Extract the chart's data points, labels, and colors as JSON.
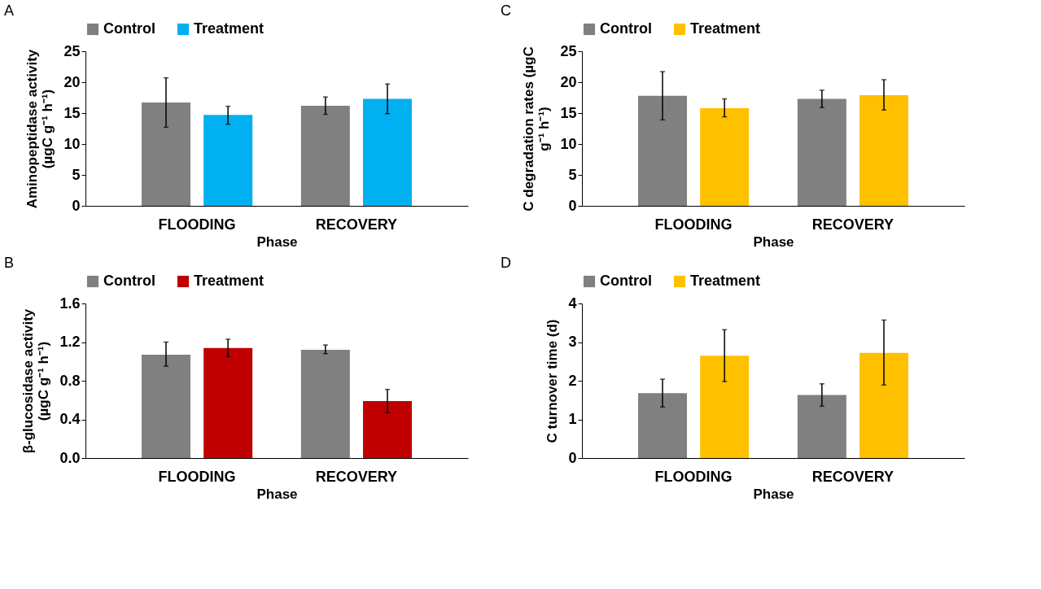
{
  "chart_data": [
    {
      "type": "bar",
      "title": "A",
      "xlabel": "Phase",
      "ylabel": "Aminopeptidase activity (µgC g⁻¹ h⁻¹)",
      "categories": [
        "FLOODING",
        "RECOVERY"
      ],
      "ylim": [
        0,
        25
      ],
      "yticks": [
        0,
        5,
        10,
        15,
        20,
        25
      ],
      "legend": "top",
      "grid": false,
      "series": [
        {
          "name": "Control",
          "color": "#808080",
          "values": [
            16.7,
            16.2
          ],
          "errors": [
            [
              12.7,
              20.7
            ],
            [
              14.8,
              17.6
            ]
          ]
        },
        {
          "name": "Treatment",
          "color": "#00b0f0",
          "values": [
            14.7,
            17.3
          ],
          "errors": [
            [
              13.2,
              16.1
            ],
            [
              14.9,
              19.7
            ]
          ]
        }
      ]
    },
    {
      "type": "bar",
      "title": "C",
      "xlabel": "Phase",
      "ylabel": "C degradation rates (µgC g⁻¹ h⁻¹)",
      "categories": [
        "FLOODING",
        "RECOVERY"
      ],
      "ylim": [
        0,
        25
      ],
      "yticks": [
        0,
        5,
        10,
        15,
        20,
        25
      ],
      "legend": "top",
      "grid": false,
      "series": [
        {
          "name": "Control",
          "color": "#808080",
          "values": [
            17.8,
            17.3
          ],
          "errors": [
            [
              13.9,
              21.7
            ],
            [
              15.9,
              18.7
            ]
          ]
        },
        {
          "name": "Treatment",
          "color": "#ffc000",
          "values": [
            15.8,
            17.9
          ],
          "errors": [
            [
              14.4,
              17.3
            ],
            [
              15.5,
              20.4
            ]
          ]
        }
      ]
    },
    {
      "type": "bar",
      "title": "B",
      "xlabel": "Phase",
      "ylabel": "β-glucosidase activity (µgC g⁻¹ h⁻¹)",
      "categories": [
        "FLOODING",
        "RECOVERY"
      ],
      "ylim": [
        0,
        1.6
      ],
      "yticks": [
        {
          "value": 0,
          "label": "0.0"
        },
        0.4,
        0.8,
        1.2,
        1.6
      ],
      "legend": "top",
      "grid": false,
      "series": [
        {
          "name": "Control",
          "color": "#808080",
          "values": [
            1.07,
            1.12
          ],
          "errors": [
            [
              0.95,
              1.2
            ],
            [
              1.08,
              1.17
            ]
          ]
        },
        {
          "name": "Treatment",
          "color": "#c00000",
          "values": [
            1.14,
            0.59
          ],
          "errors": [
            [
              1.05,
              1.23
            ],
            [
              0.47,
              0.71
            ]
          ]
        }
      ]
    },
    {
      "type": "bar",
      "title": "D",
      "xlabel": "Phase",
      "ylabel": "C turnover time (d)",
      "categories": [
        "FLOODING",
        "RECOVERY"
      ],
      "ylim": [
        0,
        4
      ],
      "yticks": [
        0,
        1,
        2,
        3,
        4
      ],
      "legend": "top",
      "grid": false,
      "series": [
        {
          "name": "Control",
          "color": "#808080",
          "values": [
            1.68,
            1.63
          ],
          "errors": [
            [
              1.32,
              2.04
            ],
            [
              1.34,
              1.92
            ]
          ]
        },
        {
          "name": "Treatment",
          "color": "#ffc000",
          "values": [
            2.65,
            2.72
          ],
          "errors": [
            [
              1.98,
              3.32
            ],
            [
              1.89,
              3.57
            ]
          ]
        }
      ]
    }
  ]
}
